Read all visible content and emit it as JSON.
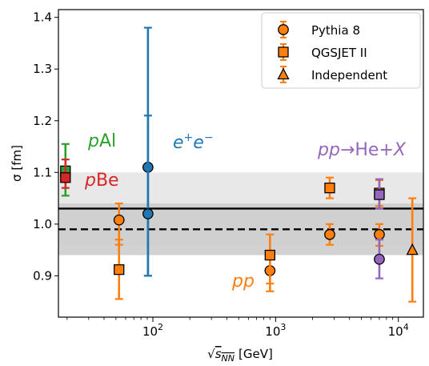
{
  "chart_data": {
    "type": "scatter",
    "xlabel_prefix": "√",
    "xlabel_var": "s",
    "xlabel_sub": "NN",
    "xlabel_unit": "[GeV]",
    "ylabel": "σ [fm]",
    "xscale": "log",
    "xlim": [
      17,
      16000
    ],
    "ylim": [
      0.82,
      1.415
    ],
    "yticks": [
      "0.9",
      "1.0",
      "1.1",
      "1.2",
      "1.3",
      "1.4"
    ],
    "xticks": [
      {
        "value": 100,
        "base": "10",
        "exp": "2"
      },
      {
        "value": 1000,
        "base": "10",
        "exp": "3"
      },
      {
        "value": 10000,
        "base": "10",
        "exp": "4"
      }
    ],
    "grid": false,
    "legend_position": "top-right",
    "legend": [
      {
        "label": "Pythia 8",
        "marker": "circle"
      },
      {
        "label": "QGSJET II",
        "marker": "square"
      },
      {
        "label": "Independent",
        "marker": "triangle"
      }
    ],
    "bands": [
      {
        "center": 1.03,
        "lo": 0.96,
        "hi": 1.1,
        "style": "solid",
        "fill": "#e6e6e6"
      },
      {
        "center": 0.99,
        "lo": 0.94,
        "hi": 1.04,
        "style": "dashed",
        "fill": "#cdcdcd"
      }
    ],
    "colors": {
      "pp": "#ff7f0e",
      "ee": "#1f77b4",
      "pAl": "#2ca02c",
      "pBe": "#d62728",
      "ppHe": "#9467bd"
    },
    "series": [
      {
        "group": "pAl",
        "points": [
          {
            "model": "QGSJET II",
            "x": 19.4,
            "y": 1.103,
            "lo": 1.055,
            "hi": 1.155
          }
        ]
      },
      {
        "group": "pBe",
        "points": [
          {
            "model": "QGSJET II",
            "x": 19.4,
            "y": 1.09,
            "lo": 1.07,
            "hi": 1.125
          }
        ]
      },
      {
        "group": "pp",
        "points": [
          {
            "model": "Pythia 8",
            "x": 53,
            "y": 1.008,
            "lo": 0.96,
            "hi": 1.04
          },
          {
            "model": "QGSJET II",
            "x": 53,
            "y": 0.912,
            "lo": 0.855,
            "hi": 0.97
          },
          {
            "model": "Pythia 8",
            "x": 900,
            "y": 0.91,
            "lo": 0.885,
            "hi": 0.94
          },
          {
            "model": "QGSJET II",
            "x": 900,
            "y": 0.94,
            "lo": 0.87,
            "hi": 0.98
          },
          {
            "model": "Pythia 8",
            "x": 2760,
            "y": 0.98,
            "lo": 0.96,
            "hi": 1.0
          },
          {
            "model": "QGSJET II",
            "x": 2760,
            "y": 1.07,
            "lo": 1.05,
            "hi": 1.09
          },
          {
            "model": "Pythia 8",
            "x": 7000,
            "y": 0.98,
            "lo": 0.958,
            "hi": 1.0
          },
          {
            "model": "QGSJET II",
            "x": 7000,
            "y": 1.06,
            "lo": 1.035,
            "hi": 1.085
          },
          {
            "model": "Independent",
            "x": 13000,
            "y": 0.95,
            "lo": 0.85,
            "hi": 1.05
          }
        ]
      },
      {
        "group": "ee",
        "points": [
          {
            "model": "Pythia 8",
            "x": 91.2,
            "y": 1.11,
            "lo": 0.9,
            "hi": 1.38
          },
          {
            "model": "Pythia 8",
            "x": 91.2,
            "y": 1.02,
            "lo": 0.9,
            "hi": 1.21
          }
        ]
      },
      {
        "group": "ppHe",
        "points": [
          {
            "model": "Pythia 8",
            "x": 7000,
            "y": 0.932,
            "lo": 0.895,
            "hi": 0.97
          },
          {
            "model": "QGSJET II",
            "x": 7000,
            "y": 1.057,
            "lo": 1.03,
            "hi": 1.087
          }
        ]
      }
    ],
    "annotations": {
      "pAl": {
        "prefix": "p",
        "rest": "Al"
      },
      "pBe": {
        "prefix": "p",
        "rest": "Be"
      },
      "ee": {
        "e1": "e",
        "sup1": "+",
        "e2": "e",
        "sup2": "−"
      },
      "pp": {
        "text": "pp"
      },
      "ppHe": {
        "prefix": "pp",
        "mid": "→He+",
        "suffix": "X"
      }
    }
  }
}
